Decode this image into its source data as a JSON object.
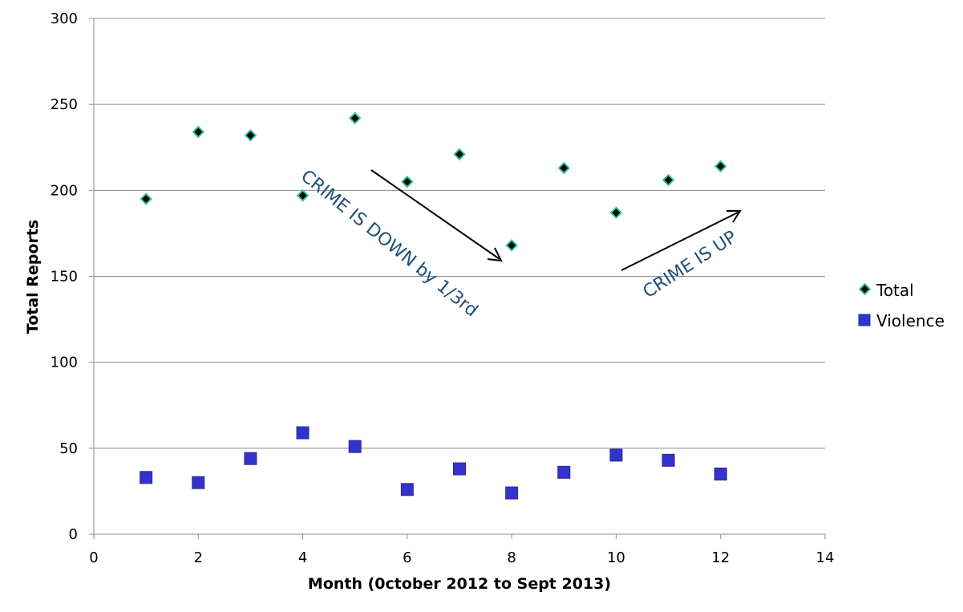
{
  "chart_data": {
    "type": "scatter",
    "xlabel": "Month (0ctober 2012 to Sept 2013)",
    "ylabel": "Total Reports",
    "xlim": [
      0,
      14
    ],
    "ylim": [
      0,
      300
    ],
    "x_ticks": [
      0,
      2,
      4,
      6,
      8,
      10,
      12,
      14
    ],
    "y_ticks": [
      0,
      50,
      100,
      150,
      200,
      250,
      300
    ],
    "grid": "horizontal",
    "legend_position": "right",
    "series": [
      {
        "name": "Total",
        "marker": "diamond",
        "color": "#000000",
        "edge_color": "#2ec4a0",
        "x": [
          1,
          2,
          3,
          4,
          5,
          6,
          7,
          8,
          9,
          10,
          11,
          12
        ],
        "y": [
          195,
          234,
          232,
          197,
          242,
          205,
          221,
          168,
          213,
          187,
          206,
          214
        ]
      },
      {
        "name": "Violence",
        "marker": "square",
        "color": "#3333cc",
        "edge_color": "#2a2a99",
        "x": [
          1,
          2,
          3,
          4,
          5,
          6,
          7,
          8,
          9,
          10,
          11,
          12
        ],
        "y": [
          33,
          30,
          44,
          59,
          51,
          26,
          38,
          24,
          36,
          46,
          43,
          35
        ]
      }
    ],
    "annotations": [
      {
        "text": "CRIME IS DOWN by 1/3rd",
        "color": "#1f4e79"
      },
      {
        "text": "CRIME IS UP",
        "color": "#1f4e79"
      }
    ]
  }
}
